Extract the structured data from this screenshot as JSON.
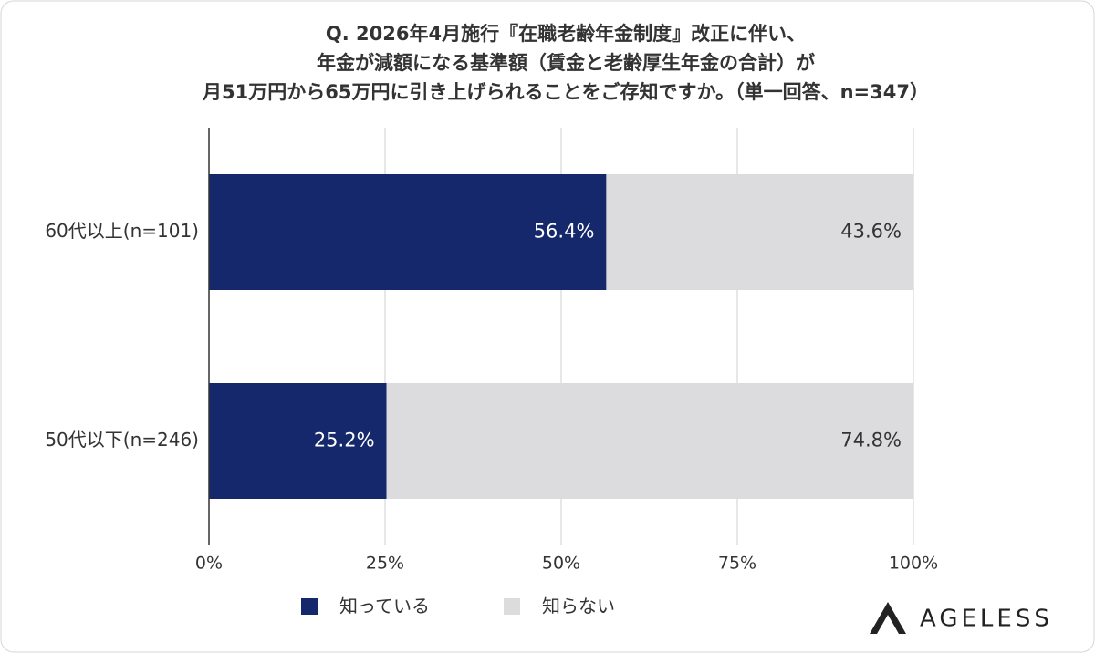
{
  "chart_data": {
    "type": "stacked-barh",
    "title": [
      "Q. 2026年4月施行『在職老齢年金制度』改正に伴い、",
      "年金が減額になる基準額（賃金と老齢厚生年金の合計）が",
      "月51万円から65万円に引き上げられることをご存知ですか。（単一回答、n=347）"
    ],
    "categories": [
      "60代以上(n=101)",
      "50代以下(n=246)"
    ],
    "series": [
      {
        "name": "知っている",
        "color": "#14286b",
        "label_color": "#ffffff",
        "values": [
          56.4,
          25.2
        ],
        "value_labels": [
          "56.4%",
          "25.2%"
        ]
      },
      {
        "name": "知らない",
        "color": "#dcdbdd",
        "label_color": "#333333",
        "values": [
          43.6,
          74.8
        ],
        "value_labels": [
          "43.6%",
          "74.8%"
        ]
      }
    ],
    "xlim": [
      0,
      100
    ],
    "xticks": [
      {
        "value": 0,
        "label": "0%"
      },
      {
        "value": 25,
        "label": "25%"
      },
      {
        "value": 50,
        "label": "50%"
      },
      {
        "value": 75,
        "label": "75%"
      },
      {
        "value": 100,
        "label": "100%"
      }
    ],
    "grid": true,
    "legend": "bottom"
  },
  "brand": "AGELESS"
}
